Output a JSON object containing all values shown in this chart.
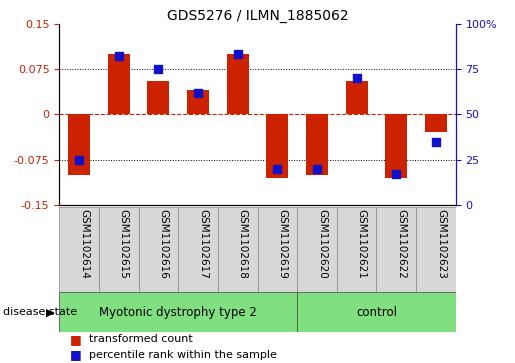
{
  "title": "GDS5276 / ILMN_1885062",
  "samples": [
    "GSM1102614",
    "GSM1102615",
    "GSM1102616",
    "GSM1102617",
    "GSM1102618",
    "GSM1102619",
    "GSM1102620",
    "GSM1102621",
    "GSM1102622",
    "GSM1102623"
  ],
  "red_values": [
    -0.1,
    0.1,
    0.055,
    0.04,
    0.1,
    -0.105,
    -0.1,
    0.055,
    -0.105,
    -0.03
  ],
  "blue_values": [
    25,
    82,
    75,
    62,
    83,
    20,
    20,
    70,
    17,
    35
  ],
  "ylim_left": [
    -0.15,
    0.15
  ],
  "ylim_right": [
    0,
    100
  ],
  "yticks_left": [
    -0.15,
    -0.075,
    0,
    0.075,
    0.15
  ],
  "yticks_right": [
    0,
    25,
    50,
    75,
    100
  ],
  "ytick_labels_right": [
    "0",
    "25",
    "50",
    "75",
    "100%"
  ],
  "group1_label": "Myotonic dystrophy type 2",
  "group2_label": "control",
  "group1_indices": [
    0,
    1,
    2,
    3,
    4,
    5
  ],
  "group2_indices": [
    6,
    7,
    8,
    9
  ],
  "disease_state_label": "disease state",
  "legend_red": "transformed count",
  "legend_blue": "percentile rank within the sample",
  "bar_color": "#cc2200",
  "dot_color": "#1111cc",
  "group1_color": "#80e080",
  "group2_color": "#80e080",
  "cell_color": "#d8d8d8",
  "bar_width": 0.55,
  "dot_size": 30,
  "title_fontsize": 10,
  "tick_fontsize": 8,
  "label_fontsize": 7.5,
  "legend_fontsize": 8,
  "disease_fontsize": 8.5
}
